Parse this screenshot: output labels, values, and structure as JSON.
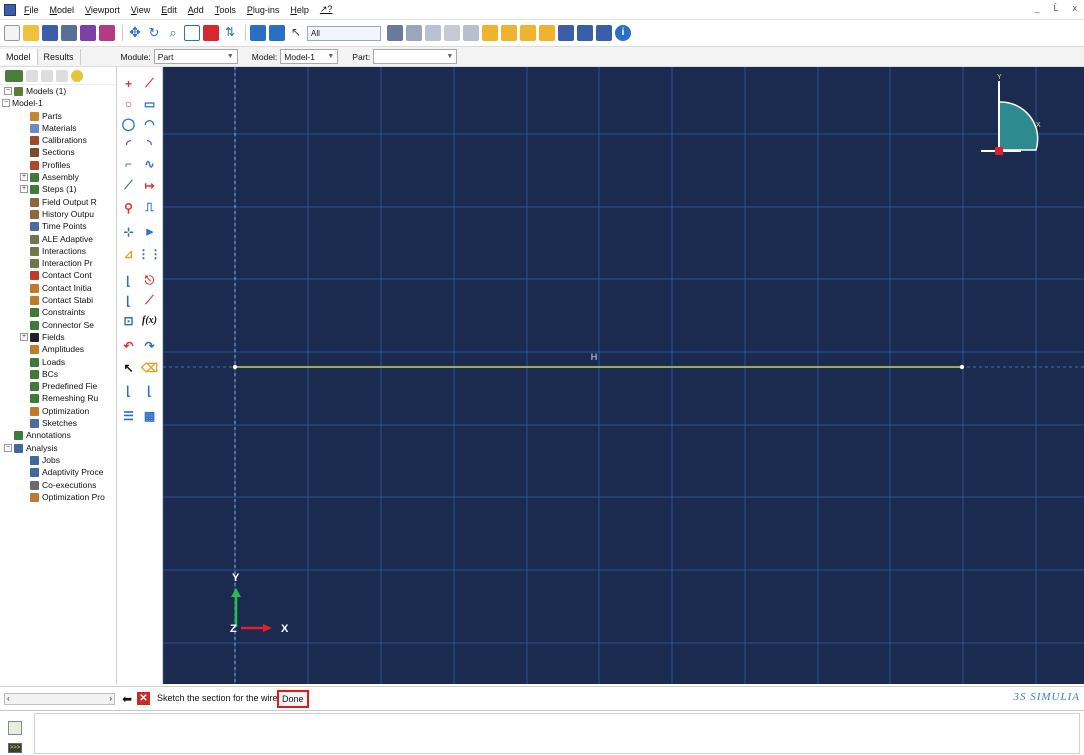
{
  "menubar": {
    "items": [
      "File",
      "Model",
      "Viewport",
      "View",
      "Edit",
      "Add",
      "Tools",
      "Plug-ins",
      "Help",
      "↗?"
    ],
    "window_controls": "_  Ĺ  x"
  },
  "toolbar": {
    "filter_select": "All"
  },
  "modulebar": {
    "tabs": [
      "Model",
      "Results"
    ],
    "module_label": "Module:",
    "module_value": "Part",
    "model_label": "Model:",
    "model_value": "Model-1",
    "part_label": "Part:",
    "part_value": ""
  },
  "tree": {
    "rows": [
      {
        "label": "Models (1)",
        "icon": "models-icon"
      },
      {
        "label": "Model-1",
        "icon": ""
      },
      {
        "label": "Parts",
        "icon": "parts-icon"
      },
      {
        "label": "Materials",
        "icon": "materials-icon"
      },
      {
        "label": "Calibrations",
        "icon": "calibrations-icon"
      },
      {
        "label": "Sections",
        "icon": "sections-icon"
      },
      {
        "label": "Profiles",
        "icon": "profiles-icon"
      },
      {
        "label": "Assembly",
        "icon": "assembly-icon"
      },
      {
        "label": "Steps (1)",
        "icon": "steps-icon"
      },
      {
        "label": "Field Output R",
        "icon": "field-output-icon"
      },
      {
        "label": "History Outpu",
        "icon": "history-output-icon"
      },
      {
        "label": "Time Points",
        "icon": "time-points-icon"
      },
      {
        "label": "ALE Adaptive",
        "icon": "ale-adaptive-icon"
      },
      {
        "label": "Interactions",
        "icon": "interactions-icon"
      },
      {
        "label": "Interaction Pr",
        "icon": "interaction-properties-icon"
      },
      {
        "label": "Contact Cont",
        "icon": "contact-controls-icon"
      },
      {
        "label": "Contact Initia",
        "icon": "contact-initialization-icon"
      },
      {
        "label": "Contact Stabi",
        "icon": "contact-stabilization-icon"
      },
      {
        "label": "Constraints",
        "icon": "constraints-icon"
      },
      {
        "label": "Connector Se",
        "icon": "connector-sections-icon"
      },
      {
        "label": "Fields",
        "icon": "fields-icon"
      },
      {
        "label": "Amplitudes",
        "icon": "amplitudes-icon"
      },
      {
        "label": "Loads",
        "icon": "loads-icon"
      },
      {
        "label": "BCs",
        "icon": "bcs-icon"
      },
      {
        "label": "Predefined Fie",
        "icon": "predefined-fields-icon"
      },
      {
        "label": "Remeshing Ru",
        "icon": "remeshing-rules-icon"
      },
      {
        "label": "Optimization",
        "icon": "optimization-icon"
      },
      {
        "label": "Sketches",
        "icon": "sketches-icon"
      },
      {
        "label": "Annotations",
        "icon": "annotations-icon"
      },
      {
        "label": "Analysis",
        "icon": "analysis-icon"
      },
      {
        "label": "Jobs",
        "icon": "jobs-icon"
      },
      {
        "label": "Adaptivity Proce",
        "icon": "adaptivity-icon"
      },
      {
        "label": "Co-executions",
        "icon": "co-executions-icon"
      },
      {
        "label": "Optimization Pro",
        "icon": "optimization-process-icon"
      }
    ]
  },
  "viewport": {
    "background": "#1a2b4f",
    "grid_color": "#2f6fc8",
    "line_color": "#c7d65a",
    "midpoint_label": "H",
    "triad": {
      "y": "Y",
      "x": "X",
      "z": "Z"
    },
    "mini_triad": {
      "y": "Y",
      "x": "X"
    }
  },
  "prompt": {
    "text": "Sketch the section for the wire",
    "done_label": "Done",
    "brand": "3S SIMULIA"
  }
}
